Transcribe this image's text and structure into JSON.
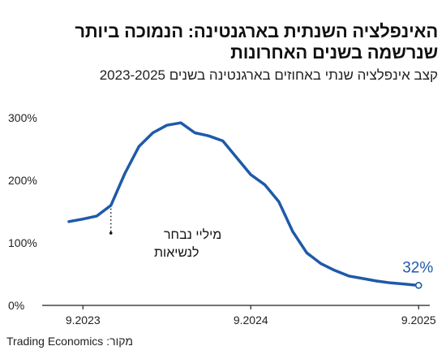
{
  "title": "האינפלציה השנתית בארגנטינה: הנמוכה ביותר שנרשמה בשנים האחרונות",
  "subtitle": "קצב אינפלציה שנתי באחוזים בארגנטינה בשנים 2023-2025",
  "source": "מקור: Trading Economics",
  "colors": {
    "line": "#1e5aa8",
    "axis": "#222222",
    "text": "#111111"
  },
  "chart_data": {
    "type": "line",
    "ylim": [
      0,
      300
    ],
    "y_ticks": [
      0,
      100,
      200,
      300
    ],
    "y_tick_labels": [
      "0%",
      "100%",
      "200%",
      "300%"
    ],
    "x_tick_labels": [
      "9.2023",
      "9.2024",
      "9.2025"
    ],
    "grid": false,
    "series": [
      {
        "x": [
          "2023-08",
          "2023-09",
          "2023-10",
          "2023-11",
          "2023-12",
          "2024-01",
          "2024-02",
          "2024-03",
          "2024-04",
          "2024-05",
          "2024-06",
          "2024-07",
          "2024-08",
          "2024-09",
          "2024-10",
          "2024-11",
          "2024-12",
          "2025-01",
          "2025-02",
          "2025-03",
          "2025-04",
          "2025-05",
          "2025-06",
          "2025-07",
          "2025-08",
          "2025-09"
        ],
        "values": [
          134,
          138,
          143,
          160,
          211,
          254,
          276,
          288,
          292,
          276,
          271,
          263,
          236,
          209,
          193,
          166,
          118,
          84,
          67,
          56,
          47,
          43,
          39,
          36,
          34,
          32
        ]
      }
    ],
    "annotations": [
      {
        "text": "מיליי נבחר",
        "text2": "לנשיאות",
        "x": "2023-11",
        "value": 160
      }
    ],
    "end_label": "32%"
  }
}
